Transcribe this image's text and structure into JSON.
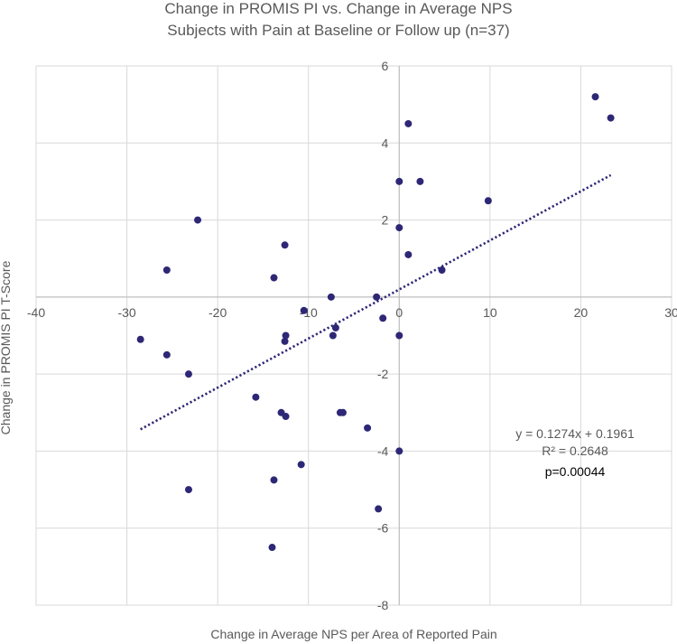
{
  "chart_data": {
    "type": "scatter",
    "title": "Change in PROMIS PI vs. Change in Average NPS",
    "subtitle": "Subjects with Pain at Baseline or Follow up (n=37)",
    "xlabel": "Change in Average NPS per Area of Reported Pain",
    "ylabel": "Change in PROMIS PI T-Score",
    "xlim": [
      -40,
      30
    ],
    "ylim": [
      -8,
      6
    ],
    "x_ticks": [
      "-40",
      "-30",
      "-20",
      "-10",
      "0",
      "10",
      "20",
      "30"
    ],
    "y_ticks": [
      "6",
      "4",
      "2",
      "",
      "-2",
      "-4",
      "-6",
      "-8"
    ],
    "grid": true,
    "marker_color": "#2E2776",
    "trendline": {
      "style": "dotted",
      "slope": 0.1274,
      "intercept": 0.1961,
      "x_range": [
        -28.5,
        23.3
      ],
      "equation": "y = 0.1274x + 0.1961",
      "r_squared": "R² = 0.2648",
      "p_value": "p=0.00044"
    },
    "points": [
      {
        "x": 21.6,
        "y": 5.2
      },
      {
        "x": 23.3,
        "y": 4.65
      },
      {
        "x": 1.0,
        "y": 4.5
      },
      {
        "x": 0.0,
        "y": 3.0
      },
      {
        "x": 2.3,
        "y": 3.0
      },
      {
        "x": 9.8,
        "y": 2.5
      },
      {
        "x": -22.2,
        "y": 2.0
      },
      {
        "x": 0.0,
        "y": 1.8
      },
      {
        "x": -12.6,
        "y": 1.35
      },
      {
        "x": 1.0,
        "y": 1.1
      },
      {
        "x": -25.6,
        "y": 0.7
      },
      {
        "x": 4.7,
        "y": 0.7
      },
      {
        "x": -13.8,
        "y": 0.5
      },
      {
        "x": -7.5,
        "y": 0.0
      },
      {
        "x": -2.5,
        "y": 0.0
      },
      {
        "x": -10.5,
        "y": -0.35
      },
      {
        "x": -1.8,
        "y": -0.55
      },
      {
        "x": -7.0,
        "y": -0.8
      },
      {
        "x": -7.3,
        "y": -1.0
      },
      {
        "x": -12.5,
        "y": -1.0
      },
      {
        "x": 0.0,
        "y": -1.0
      },
      {
        "x": -28.5,
        "y": -1.1
      },
      {
        "x": -12.6,
        "y": -1.15
      },
      {
        "x": -25.6,
        "y": -1.5
      },
      {
        "x": -23.2,
        "y": -2.0
      },
      {
        "x": -15.8,
        "y": -2.6
      },
      {
        "x": -13.0,
        "y": -3.0
      },
      {
        "x": -6.5,
        "y": -3.0
      },
      {
        "x": -6.2,
        "y": -3.0
      },
      {
        "x": -12.5,
        "y": -3.1
      },
      {
        "x": -3.5,
        "y": -3.4
      },
      {
        "x": 0.0,
        "y": -4.0
      },
      {
        "x": -10.8,
        "y": -4.35
      },
      {
        "x": -13.8,
        "y": -4.75
      },
      {
        "x": -23.2,
        "y": -5.0
      },
      {
        "x": -2.3,
        "y": -5.5
      },
      {
        "x": -14.0,
        "y": -6.5
      }
    ]
  }
}
